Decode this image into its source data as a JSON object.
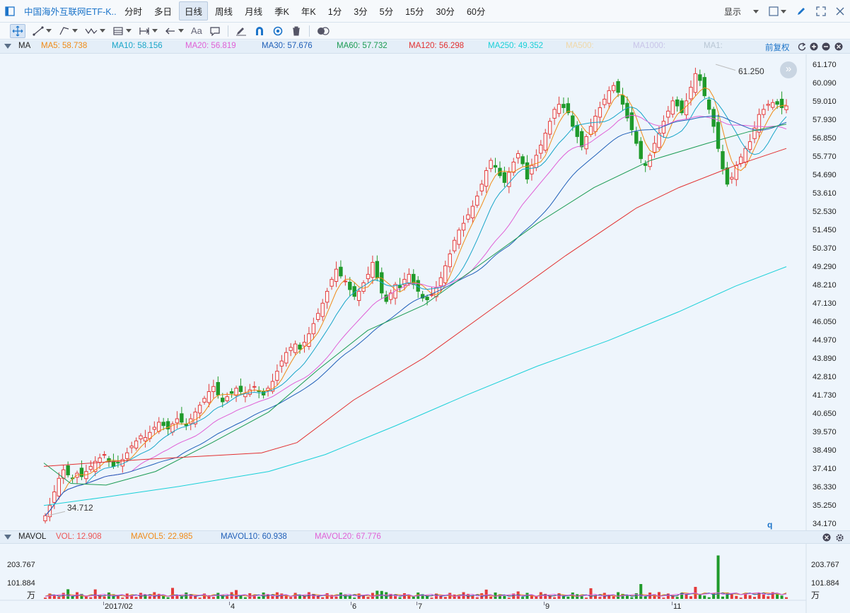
{
  "header": {
    "title": "中国海外互联网ETF-K...",
    "periods": [
      "分时",
      "多日",
      "日线",
      "周线",
      "月线",
      "季K",
      "年K",
      "1分",
      "3分",
      "5分",
      "15分",
      "30分",
      "60分"
    ],
    "active_period": "日线",
    "display_label": "显示"
  },
  "toolbar": {
    "text_tool_label": "Aa",
    "tools": [
      "move-tool",
      "line-tool",
      "channel-tool",
      "wave-tool",
      "fib-tool",
      "range-tool",
      "arrow-tool",
      "text-tool",
      "comment-tool",
      "pen-tool",
      "magnet-tool",
      "eye-tool",
      "trash-tool",
      "compare-tool"
    ]
  },
  "ma_bar": {
    "name": "MA",
    "items": [
      {
        "label": "MA5: 58.738",
        "color": "#f08a16"
      },
      {
        "label": "MA10: 58.156",
        "color": "#17a5c8"
      },
      {
        "label": "MA20: 56.819",
        "color": "#e060d6"
      },
      {
        "label": "MA30: 57.676",
        "color": "#1f5fb8"
      },
      {
        "label": "MA60: 57.732",
        "color": "#1a9b52"
      },
      {
        "label": "MA120: 56.298",
        "color": "#e23030"
      },
      {
        "label": "MA250: 49.352",
        "color": "#19d0d8"
      },
      {
        "label": "MA500:",
        "color": "#f0d8a8"
      },
      {
        "label": "MA1000:",
        "color": "#c8c4e8"
      },
      {
        "label": "MA1:",
        "color": "#b8c6d4"
      }
    ],
    "adjust_label": "前复权"
  },
  "price_axis": {
    "ticks": [
      "61.170",
      "60.090",
      "59.010",
      "57.930",
      "56.850",
      "55.770",
      "54.690",
      "53.610",
      "52.530",
      "51.450",
      "50.370",
      "49.290",
      "48.210",
      "47.130",
      "46.050",
      "44.970",
      "43.890",
      "42.810",
      "41.730",
      "40.650",
      "39.570",
      "38.490",
      "37.410",
      "36.330",
      "35.250",
      "34.170"
    ],
    "min": 34.17,
    "max": 61.17
  },
  "annotations": {
    "high_label": "61.250",
    "low_label": "34.712",
    "q_marker": "q"
  },
  "vol_bar": {
    "name": "MAVOL",
    "items": [
      {
        "label": "VOL: 12.908",
        "color": "#e55"
      },
      {
        "label": "MAVOL5: 22.985",
        "color": "#f08a16"
      },
      {
        "label": "MAVOL10: 60.938",
        "color": "#1f5fb8"
      },
      {
        "label": "MAVOL20: 67.776",
        "color": "#e060d6"
      }
    ]
  },
  "vol_axis": {
    "ticks": [
      "203.767",
      "101.884"
    ],
    "unit": "万"
  },
  "x_axis": {
    "labels": [
      "2017/02",
      "4",
      "6",
      "7",
      "9",
      "11"
    ]
  },
  "chart_data": {
    "type": "candlestick",
    "y_axis_range": [
      34.17,
      61.17
    ],
    "period_high": 61.25,
    "period_low": 34.712,
    "ma_values": {
      "MA5": 58.738,
      "MA10": 58.156,
      "MA20": 56.819,
      "MA30": 57.676,
      "MA60": 57.732,
      "MA120": 56.298,
      "MA250": 49.352
    },
    "closes": [
      34.7,
      35.3,
      36.1,
      36.9,
      37.4,
      37.1,
      36.9,
      37.2,
      37.0,
      37.3,
      37.6,
      37.9,
      38.1,
      38.3,
      37.9,
      37.6,
      37.8,
      38.0,
      38.4,
      38.8,
      39.1,
      39.4,
      39.3,
      39.6,
      39.9,
      40.2,
      40.0,
      39.8,
      40.1,
      40.4,
      40.2,
      40.0,
      40.4,
      40.8,
      41.2,
      41.6,
      42.0,
      42.3,
      41.8,
      41.4,
      41.7,
      41.9,
      42.2,
      42.0,
      41.9,
      42.1,
      42.3,
      42.0,
      41.8,
      42.2,
      42.6,
      43.2,
      43.8,
      44.3,
      44.6,
      44.8,
      44.5,
      44.9,
      45.4,
      46.0,
      46.6,
      47.2,
      47.9,
      48.6,
      49.2,
      48.8,
      48.5,
      48.0,
      47.6,
      47.9,
      48.4,
      48.9,
      49.6,
      48.7,
      47.8,
      47.3,
      47.8,
      48.3,
      48.1,
      48.6,
      48.9,
      48.3,
      47.9,
      47.5,
      47.4,
      47.7,
      48.1,
      48.7,
      49.4,
      50.1,
      50.9,
      51.5,
      51.9,
      52.4,
      52.9,
      53.5,
      54.2,
      55.0,
      55.6,
      55.2,
      54.7,
      54.3,
      54.9,
      55.5,
      56.0,
      55.4,
      54.5,
      55.3,
      55.9,
      56.5,
      57.2,
      57.9,
      58.6,
      58.9,
      58.7,
      58.4,
      57.6,
      57.0,
      56.4,
      57.0,
      57.6,
      58.2,
      58.7,
      59.2,
      59.7,
      60.0,
      59.6,
      58.9,
      58.1,
      57.4,
      56.6,
      55.7,
      55.3,
      55.9,
      56.6,
      57.2,
      57.9,
      58.5,
      59.1,
      58.8,
      58.4,
      59.1,
      59.9,
      60.7,
      60.3,
      59.4,
      58.6,
      57.6,
      56.3,
      55.1,
      54.2,
      54.6,
      55.3,
      55.8,
      56.3,
      56.7,
      57.5,
      58.3,
      58.6,
      58.9,
      59.0,
      58.9,
      58.7,
      58.8
    ],
    "mavol_values": {
      "VOL": 12.908,
      "MAVOL5": 22.985,
      "MAVOL10": 60.938,
      "MAVOL20": 67.776
    }
  }
}
